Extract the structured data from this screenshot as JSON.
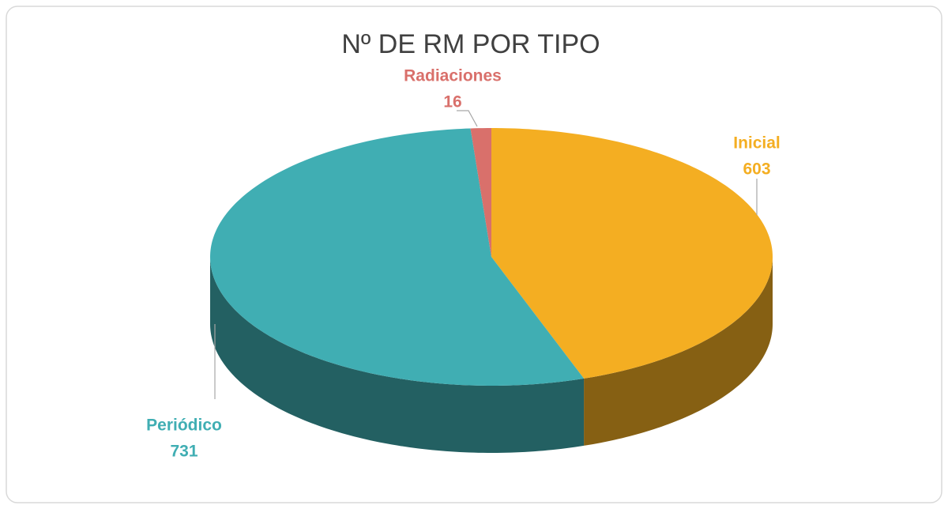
{
  "chart_data": {
    "type": "pie3d",
    "title": "Nº DE RM POR TIPO",
    "categories": [
      "Inicial",
      "Periódico",
      "Radiaciones"
    ],
    "values": [
      603,
      731,
      16
    ],
    "colors": [
      "#f4ae22",
      "#40aeb3",
      "#d9706b"
    ]
  }
}
